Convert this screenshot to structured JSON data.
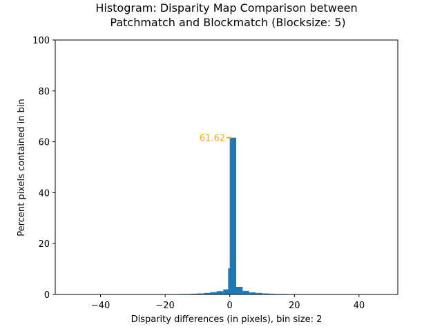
{
  "chart_data": {
    "type": "bar",
    "title_lines": [
      "Histogram: Disparity Map Comparison between",
      "Patchmatch and Blockmatch (Blocksize: 5)"
    ],
    "xlabel": "Disparity differences (in pixels), bin size: 2",
    "ylabel": "Percent pixels contained in bin",
    "xlim": [
      -54,
      52
    ],
    "ylim": [
      0,
      100
    ],
    "x_ticks": [
      -40,
      -20,
      0,
      20,
      40
    ],
    "x_tick_labels": [
      "−40",
      "−20",
      "0",
      "20",
      "40"
    ],
    "y_ticks": [
      0,
      20,
      40,
      60,
      80,
      100
    ],
    "y_tick_labels": [
      "0",
      "20",
      "40",
      "60",
      "80",
      "100"
    ],
    "bin_width": 2,
    "bins": [
      {
        "x0": -28,
        "value": 0.1
      },
      {
        "x0": -26,
        "value": 0.1
      },
      {
        "x0": -24,
        "value": 0.1
      },
      {
        "x0": -22,
        "value": 0.1
      },
      {
        "x0": -20,
        "value": 0.15
      },
      {
        "x0": -18,
        "value": 0.15
      },
      {
        "x0": -16,
        "value": 0.2
      },
      {
        "x0": -14,
        "value": 0.2
      },
      {
        "x0": -12,
        "value": 0.3
      },
      {
        "x0": -10,
        "value": 0.4
      },
      {
        "x0": -8,
        "value": 0.6
      },
      {
        "x0": -6,
        "value": 0.9
      },
      {
        "x0": -4,
        "value": 1.3
      },
      {
        "x0": -2,
        "value": 2.0
      },
      {
        "x0": -0.5,
        "value": 10.3
      },
      {
        "x0": 0,
        "value": 61.62
      },
      {
        "x0": 2,
        "value": 3.0
      },
      {
        "x0": 4,
        "value": 1.4
      },
      {
        "x0": 6,
        "value": 0.8
      },
      {
        "x0": 8,
        "value": 0.6
      },
      {
        "x0": 10,
        "value": 0.4
      },
      {
        "x0": 12,
        "value": 0.3
      },
      {
        "x0": 14,
        "value": 0.2
      },
      {
        "x0": 16,
        "value": 0.2
      },
      {
        "x0": 18,
        "value": 0.15
      },
      {
        "x0": 20,
        "value": 0.1
      }
    ],
    "bar_color": "#1f77b4",
    "annotation": {
      "text": "61.62",
      "x": 0.5,
      "y": 61.62,
      "color": "#ffa500"
    },
    "grid": false
  }
}
